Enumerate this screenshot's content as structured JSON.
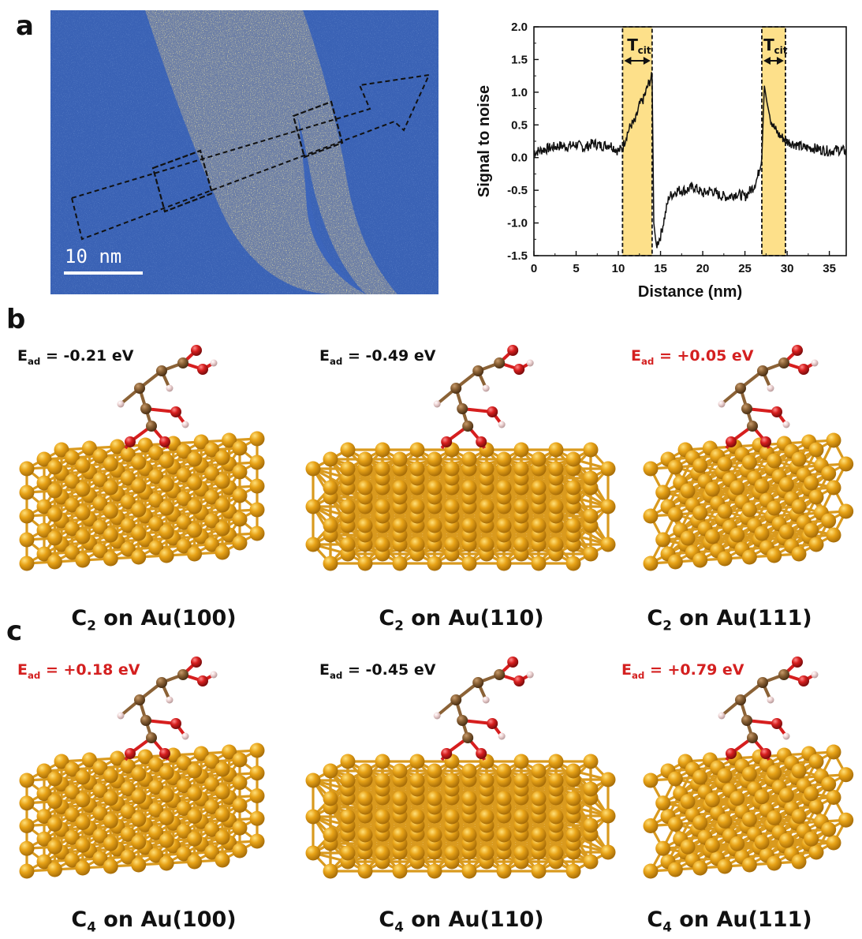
{
  "panels": {
    "a": {
      "letter": "a",
      "scale_bar": "10 nm",
      "band_label": "T",
      "band_label_sub": "cit"
    },
    "b": {
      "letter": "b",
      "structures": [
        {
          "energy_label": "E",
          "energy_sub": "ad",
          "energy_value": " = -0.21 eV",
          "energy_sign": "negative",
          "species": "C",
          "species_sub": "2",
          "surface": " on Au(100)"
        },
        {
          "energy_label": "E",
          "energy_sub": "ad",
          "energy_value": " = -0.49 eV",
          "energy_sign": "negative",
          "species": "C",
          "species_sub": "2",
          "surface": " on Au(110)"
        },
        {
          "energy_label": "E",
          "energy_sub": "ad",
          "energy_value": " = +0.05 eV",
          "energy_sign": "positive",
          "species": "C",
          "species_sub": "2",
          "surface": " on Au(111)"
        }
      ]
    },
    "c": {
      "letter": "c",
      "structures": [
        {
          "energy_label": "E",
          "energy_sub": "ad",
          "energy_value": " = +0.18 eV",
          "energy_sign": "positive",
          "species": "C",
          "species_sub": "4",
          "surface": " on Au(100)"
        },
        {
          "energy_label": "E",
          "energy_sub": "ad",
          "energy_value": " = -0.45 eV",
          "energy_sign": "negative",
          "species": "C",
          "species_sub": "4",
          "surface": " on Au(110)"
        },
        {
          "energy_label": "E",
          "energy_sub": "ad",
          "energy_value": " = +0.79 eV",
          "energy_sign": "positive",
          "species": "C",
          "species_sub": "4",
          "surface": " on Au(111)"
        }
      ]
    }
  },
  "colors": {
    "positive_energy": "#d42020",
    "negative_energy": "#111111",
    "gold_atom": "#e8a317",
    "gold_bond": "#d99a1e",
    "carbon_atom": "#8b6236",
    "oxygen_atom": "#d61e1e",
    "hydrogen_atom": "#f0d6d6",
    "band_fill": "#fde08a",
    "micrograph_bg": "#3a62b5"
  },
  "chart_data": {
    "type": "line",
    "xlabel": "Distance (nm)",
    "ylabel": "Signal to noise",
    "xlim": [
      0,
      37
    ],
    "ylim": [
      -1.5,
      2.0
    ],
    "x_ticks": [
      "0",
      "5",
      "10",
      "15",
      "20",
      "25",
      "30",
      "35"
    ],
    "y_ticks": [
      "-1.5",
      "-1.0",
      "-0.5",
      "0.0",
      "0.5",
      "1.0",
      "1.5",
      "2.0"
    ],
    "x_tick_values": [
      0,
      5,
      10,
      15,
      20,
      25,
      30,
      35
    ],
    "y_tick_values": [
      -1.5,
      -1.0,
      -0.5,
      0.0,
      0.5,
      1.0,
      1.5,
      2.0
    ],
    "highlight_bands": [
      {
        "x_start": 10.5,
        "x_end": 14.0,
        "label": "T",
        "label_sub": "cit"
      },
      {
        "x_start": 27.0,
        "x_end": 29.8,
        "label": "T",
        "label_sub": "cit"
      }
    ],
    "series": [
      {
        "x": [
          0,
          1,
          2,
          3,
          4,
          5,
          6,
          7,
          8,
          9,
          10,
          10.5,
          11,
          11.5,
          12,
          12.5,
          13,
          13.5,
          14,
          14.2,
          14.5,
          15,
          15.5,
          16,
          17,
          18,
          19,
          20,
          21,
          22,
          23,
          24,
          25,
          25.5,
          26,
          26.5,
          27,
          27.3,
          27.6,
          28,
          28.5,
          29,
          29.5,
          30,
          31,
          32,
          33,
          34,
          35,
          36,
          37
        ],
        "y": [
          0.08,
          0.12,
          0.15,
          0.18,
          0.17,
          0.2,
          0.15,
          0.22,
          0.18,
          0.2,
          0.1,
          0.15,
          0.35,
          0.5,
          0.55,
          0.8,
          0.9,
          1.1,
          1.25,
          -1.0,
          -1.35,
          -1.2,
          -0.9,
          -0.6,
          -0.5,
          -0.5,
          -0.45,
          -0.55,
          -0.5,
          -0.58,
          -0.6,
          -0.55,
          -0.6,
          -0.52,
          -0.45,
          -0.3,
          0.0,
          1.1,
          0.85,
          0.6,
          0.45,
          0.35,
          0.3,
          0.25,
          0.2,
          0.15,
          0.15,
          0.12,
          0.1,
          0.12,
          0.1
        ]
      }
    ]
  }
}
